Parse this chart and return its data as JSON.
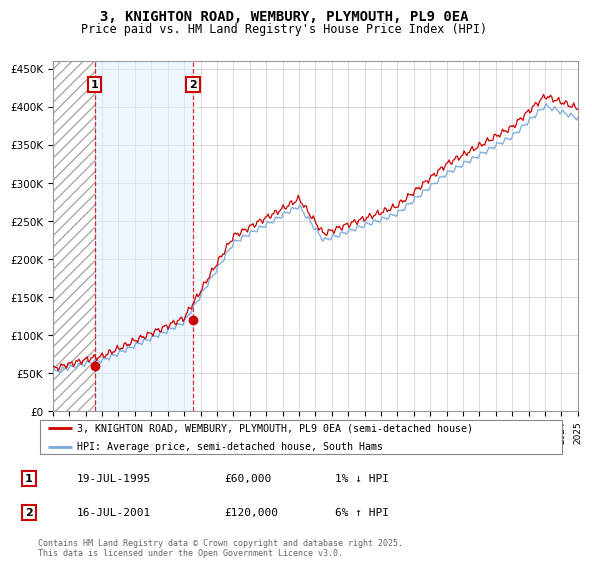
{
  "title_line1": "3, KNIGHTON ROAD, WEMBURY, PLYMOUTH, PL9 0EA",
  "title_line2": "Price paid vs. HM Land Registry's House Price Index (HPI)",
  "ylabel_ticks": [
    "£0",
    "£50K",
    "£100K",
    "£150K",
    "£200K",
    "£250K",
    "£300K",
    "£350K",
    "£400K",
    "£450K"
  ],
  "ytick_values": [
    0,
    50000,
    100000,
    150000,
    200000,
    250000,
    300000,
    350000,
    400000,
    450000
  ],
  "x_start_year": 1993,
  "x_end_year": 2025,
  "sale1_year": 1995.54,
  "sale1_price": 60000,
  "sale2_year": 2001.54,
  "sale2_price": 120000,
  "legend_line1": "3, KNIGHTON ROAD, WEMBURY, PLYMOUTH, PL9 0EA (semi-detached house)",
  "legend_line2": "HPI: Average price, semi-detached house, South Hams",
  "annotation1_label": "1",
  "annotation1_date": "19-JUL-1995",
  "annotation1_price": "£60,000",
  "annotation1_hpi": "1% ↓ HPI",
  "annotation2_label": "2",
  "annotation2_date": "16-JUL-2001",
  "annotation2_price": "£120,000",
  "annotation2_hpi": "6% ↑ HPI",
  "footer": "Contains HM Land Registry data © Crown copyright and database right 2025.\nThis data is licensed under the Open Government Licence v3.0.",
  "line_color_price": "#cc0000",
  "line_color_hpi": "#7aaadd",
  "grid_color": "#cccccc",
  "bg_color_hatch": "#e8e8e8",
  "bg_color_span": "#ddeeff"
}
